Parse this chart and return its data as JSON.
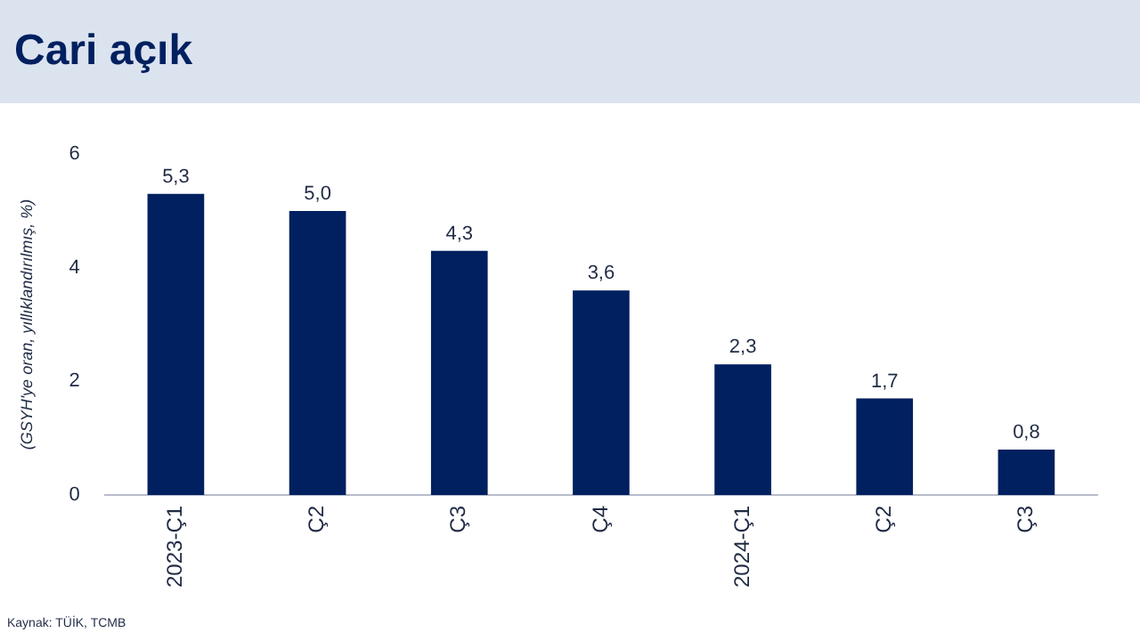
{
  "chart_data": {
    "type": "bar",
    "title": "Cari açık",
    "ylabel": "(GSYH'ye oran, yıllıklandırılmış, %)",
    "categories": [
      "2023-Ç1",
      "Ç2",
      "Ç3",
      "Ç4",
      "2024-Ç1",
      "Ç2",
      "Ç3"
    ],
    "values": [
      5.3,
      5.0,
      4.3,
      3.6,
      2.3,
      1.7,
      0.8
    ],
    "value_labels": [
      "5,3",
      "5,0",
      "4,3",
      "3,6",
      "2,3",
      "1,7",
      "0,8"
    ],
    "color": "#002060",
    "ylim": [
      0,
      6
    ],
    "yticks": [
      0,
      2,
      4,
      6
    ],
    "grid": false,
    "legend": false,
    "annotations": [
      "Kaynak: TÜİK, TCMB"
    ]
  }
}
